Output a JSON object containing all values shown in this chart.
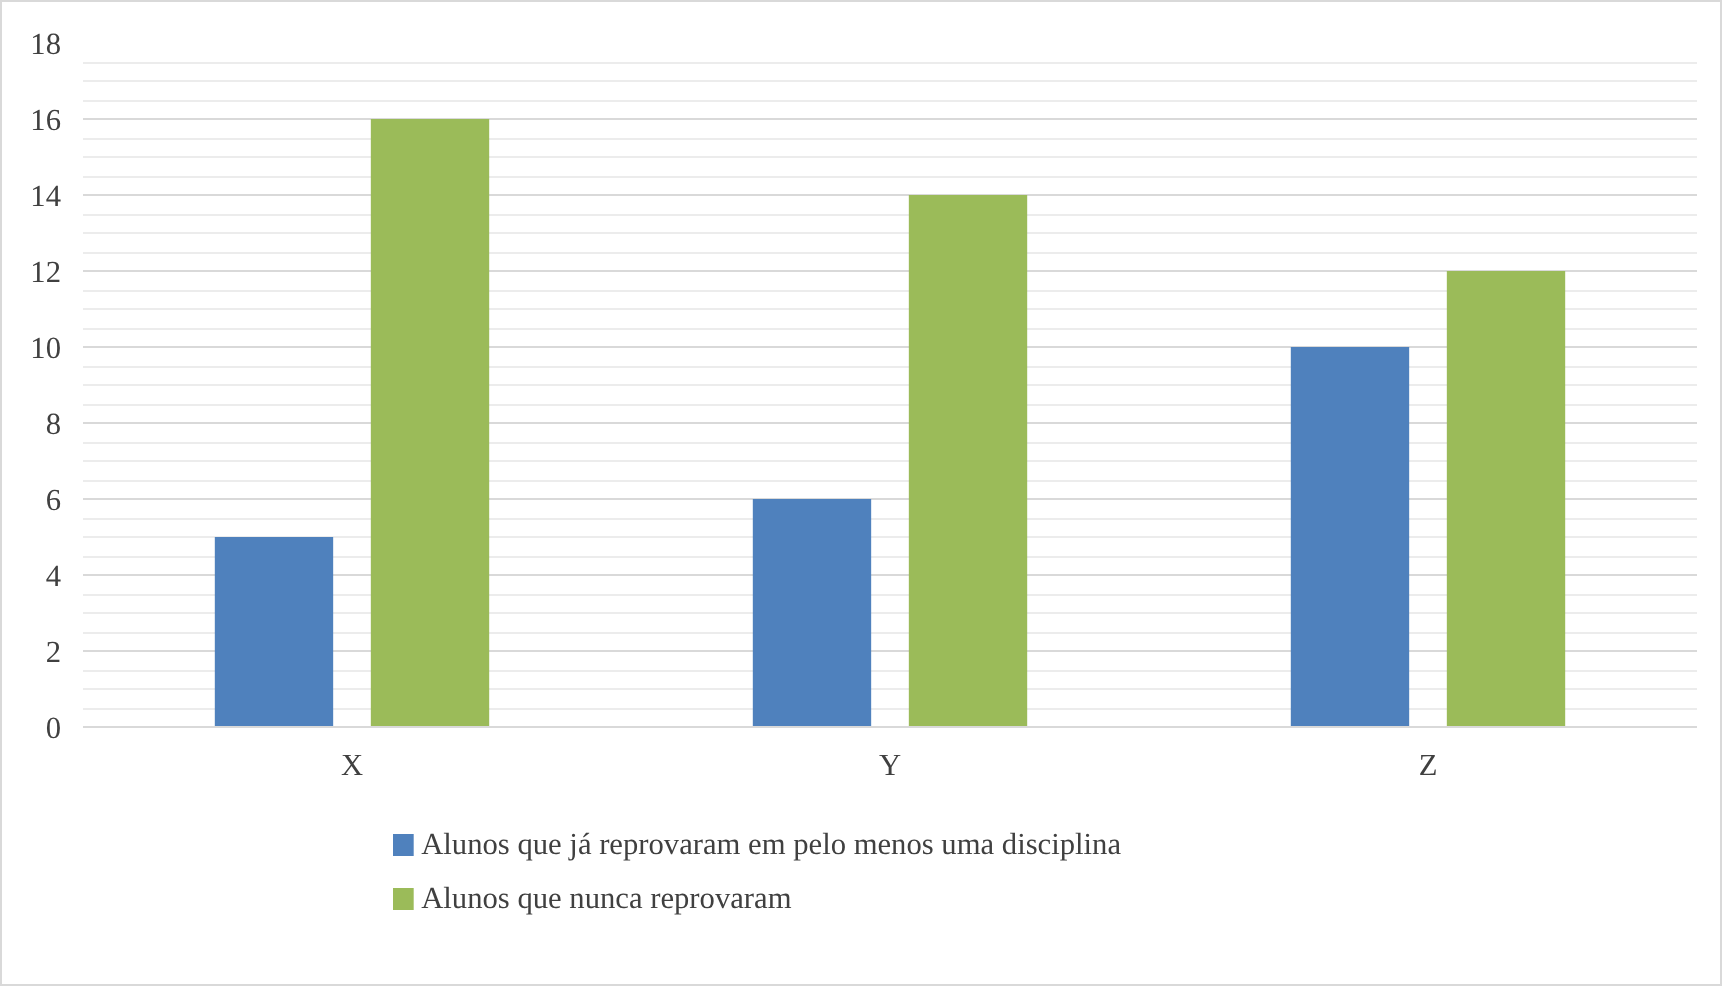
{
  "chart_data": {
    "type": "bar",
    "categories": [
      "X",
      "Y",
      "Z"
    ],
    "series": [
      {
        "name": "Alunos que já reprovaram em pelo menos uma disciplina",
        "color": "#4f81bd",
        "values": [
          5,
          6,
          10
        ]
      },
      {
        "name": "Alunos que nunca reprovaram",
        "color": "#9bbb59",
        "values": [
          16,
          14,
          12
        ]
      }
    ],
    "ylim": [
      0,
      18
    ],
    "yticks": [
      0,
      2,
      4,
      6,
      8,
      10,
      12,
      14,
      16,
      18
    ],
    "grid": "y",
    "legend": "bottom"
  }
}
